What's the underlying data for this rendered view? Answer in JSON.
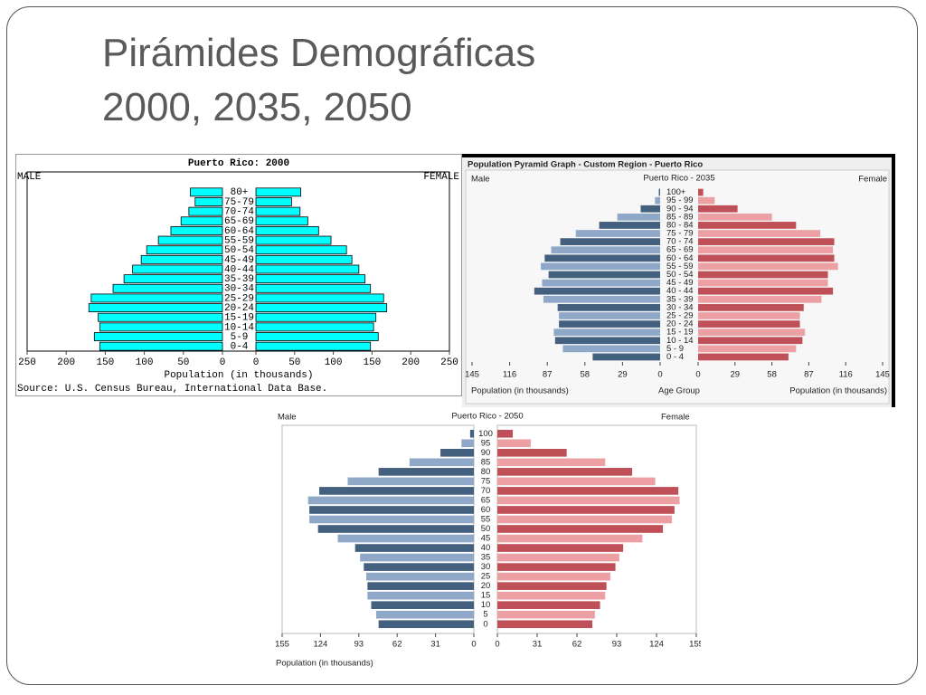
{
  "slide_title": [
    "Pirámides Demográficas",
    "2000, 2035, 2050"
  ],
  "chart_data": [
    {
      "type": "pyramid",
      "title": "Puerto Rico: 2000",
      "categories": [
        "0-4",
        "5-9",
        "10-14",
        "15-19",
        "20-24",
        "25-29",
        "30-34",
        "35-39",
        "40-44",
        "45-49",
        "50-54",
        "55-59",
        "60-64",
        "65-69",
        "70-74",
        "75-79",
        "80+"
      ],
      "series": [
        {
          "name": "MALE",
          "color": "#00ffff",
          "values": [
            157,
            164,
            157,
            159,
            171,
            168,
            140,
            126,
            115,
            104,
            97,
            82,
            66,
            53,
            43,
            35,
            41
          ]
        },
        {
          "name": "FEMALE",
          "color": "#00ffff",
          "values": [
            148,
            158,
            152,
            155,
            169,
            165,
            148,
            141,
            133,
            124,
            117,
            97,
            81,
            67,
            57,
            46,
            58
          ]
        }
      ],
      "xlim": [
        0,
        250
      ],
      "xticks": [
        0,
        50,
        100,
        150,
        200,
        250
      ],
      "xlabel": "Population (in thousands)",
      "source": "Source: U.S. Census Bureau, International Data Base."
    },
    {
      "type": "pyramid",
      "header": "Population Pyramid Graph - Custom Region - Puerto Rico",
      "title": "Puerto Rico - 2035",
      "categories": [
        "0 - 4",
        "5 - 9",
        "10 - 14",
        "15 - 19",
        "20 - 24",
        "25 - 29",
        "30 - 34",
        "35 - 39",
        "40 - 44",
        "45 - 49",
        "50 - 54",
        "55 - 59",
        "60 - 64",
        "65 - 69",
        "70 - 74",
        "75 - 79",
        "80 - 84",
        "85 - 89",
        "90 - 94",
        "95 - 99",
        "100+"
      ],
      "series": [
        {
          "name": "Male",
          "colors": [
            "#44607f",
            "#8fa8c8"
          ],
          "values": [
            52,
            75,
            81,
            82,
            78,
            78,
            79,
            90,
            97,
            91,
            86,
            92,
            89,
            84,
            77,
            65,
            47,
            33,
            15,
            4,
            1
          ]
        },
        {
          "name": "Female",
          "colors": [
            "#c05058",
            "#eda0a3"
          ],
          "values": [
            71,
            77,
            82,
            84,
            80,
            80,
            83,
            97,
            106,
            102,
            102,
            110,
            107,
            106,
            107,
            96,
            77,
            58,
            31,
            13,
            4
          ]
        }
      ],
      "xlim": [
        0,
        145
      ],
      "xticks": [
        0,
        29,
        58,
        87,
        116,
        145
      ],
      "xlabel": "Population (in thousands)",
      "ylabel": "Age Group"
    },
    {
      "type": "pyramid",
      "title": "Puerto Rico - 2050",
      "categories": [
        "0",
        "5",
        "10",
        "15",
        "20",
        "25",
        "30",
        "35",
        "40",
        "45",
        "50",
        "55",
        "60",
        "65",
        "70",
        "75",
        "80",
        "85",
        "90",
        "95",
        "100"
      ],
      "series": [
        {
          "name": "Male",
          "colors": [
            "#44607f",
            "#8fa8c8"
          ],
          "values": [
            77,
            79,
            83,
            86,
            86,
            87,
            89,
            92,
            96,
            110,
            126,
            133,
            133,
            134,
            125,
            102,
            77,
            52,
            27,
            10,
            3
          ]
        },
        {
          "name": "Female",
          "colors": [
            "#c05058",
            "#eda0a3"
          ],
          "values": [
            74,
            76,
            80,
            84,
            85,
            88,
            92,
            95,
            98,
            113,
            129,
            136,
            138,
            142,
            141,
            123,
            105,
            84,
            54,
            26,
            12
          ]
        }
      ],
      "xlim": [
        0,
        155
      ],
      "xticks": [
        0,
        31,
        62,
        93,
        124,
        155
      ],
      "xlabel": "Population (in thousands)"
    }
  ]
}
